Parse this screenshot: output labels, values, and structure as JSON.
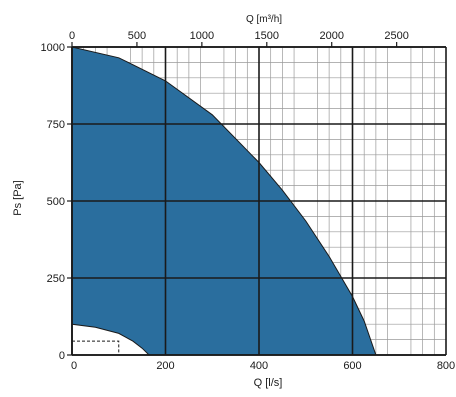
{
  "chart_data": {
    "type": "area",
    "title": "Q [m³/h]",
    "xlabel": "Q [l/s]",
    "ylabel": "Ps [Pa]",
    "xlim": [
      0,
      800
    ],
    "ylim": [
      0,
      1000
    ],
    "x_ticks": [
      0,
      200,
      400,
      600,
      800
    ],
    "x_tick_labels": [
      "0",
      "200",
      "400",
      "600",
      "800"
    ],
    "y_ticks": [
      0,
      250,
      500,
      750,
      1000
    ],
    "y_tick_labels": [
      "0",
      "250",
      "500",
      "750",
      "1000"
    ],
    "top_axis": {
      "ticks": [
        0,
        500,
        1000,
        1500,
        2000,
        2500
      ],
      "tick_labels": [
        "0",
        "500",
        "1000",
        "1500",
        "2000",
        "2500"
      ],
      "max": 2880
    },
    "grid": true,
    "fill_color": "#2a6e9e",
    "series": [
      {
        "x": [
          0,
          100,
          200,
          300,
          400,
          450,
          500,
          550,
          600,
          625,
          650
        ],
        "y": [
          1000,
          965,
          890,
          780,
          625,
          535,
          435,
          320,
          190,
          110,
          0
        ]
      },
      {
        "x": [
          0,
          50,
          100,
          130,
          150,
          165
        ],
        "y": [
          100,
          90,
          70,
          45,
          22,
          0
        ]
      }
    ],
    "dashed_box": {
      "x": [
        0,
        100
      ],
      "y": [
        0,
        45
      ]
    }
  }
}
